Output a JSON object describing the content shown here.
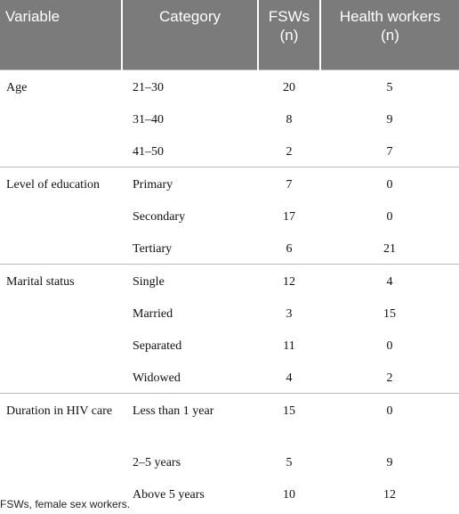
{
  "table": {
    "header": {
      "variable": "Variable",
      "category": "Category",
      "fsws": "FSWs",
      "fsws_unit": "(n)",
      "health_workers": "Health workers",
      "health_workers_unit": "(n)"
    },
    "groups": [
      {
        "variable": "Age",
        "rows": [
          {
            "category": "21–30",
            "fsws": 20,
            "health_workers": 5
          },
          {
            "category": "31–40",
            "fsws": 8,
            "health_workers": 9
          },
          {
            "category": "41–50",
            "fsws": 2,
            "health_workers": 7
          }
        ]
      },
      {
        "variable": "Level of education",
        "rows": [
          {
            "category": "Primary",
            "fsws": 7,
            "health_workers": 0
          },
          {
            "category": "Secondary",
            "fsws": 17,
            "health_workers": 0
          },
          {
            "category": "Tertiary",
            "fsws": 6,
            "health_workers": 21
          }
        ]
      },
      {
        "variable": "Marital status",
        "rows": [
          {
            "category": "Single",
            "fsws": 12,
            "health_workers": 4
          },
          {
            "category": "Married",
            "fsws": 3,
            "health_workers": 15
          },
          {
            "category": "Separated",
            "fsws": 11,
            "health_workers": 0
          },
          {
            "category": "Widowed",
            "fsws": 4,
            "health_workers": 2
          }
        ]
      },
      {
        "variable": "Duration in HIV care",
        "rows": [
          {
            "category": "Less than 1 year",
            "fsws": 15,
            "health_workers": 0
          },
          {
            "category": "2–5 years",
            "fsws": 5,
            "health_workers": 9
          },
          {
            "category": "Above 5 years",
            "fsws": 10,
            "health_workers": 12
          }
        ]
      }
    ],
    "footnote": "FSWs, female sex workers."
  }
}
